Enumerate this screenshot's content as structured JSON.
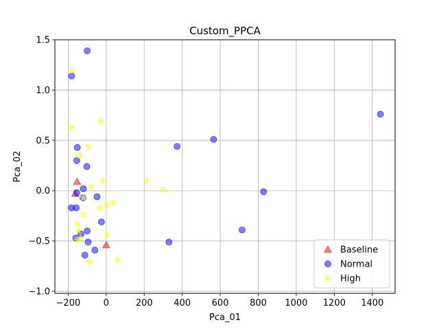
{
  "chart_data": {
    "type": "scatter",
    "title": "Custom_PPCA",
    "xlabel": "Pca_01",
    "ylabel": "Pca_02",
    "xlim": [
      -270,
      1520
    ],
    "ylim": [
      -1.02,
      1.5
    ],
    "xticks": [
      -200,
      0,
      200,
      400,
      600,
      800,
      1000,
      1200,
      1400
    ],
    "yticks": [
      -1.0,
      -0.5,
      0.0,
      0.5,
      1.0,
      1.5
    ],
    "xtick_labels": [
      "−200",
      "0",
      "200",
      "400",
      "600",
      "800",
      "1000",
      "1200",
      "1400"
    ],
    "ytick_labels": [
      "−1.0",
      "−0.5",
      "0.0",
      "0.5",
      "1.0",
      "1.5"
    ],
    "grid": true,
    "legend_position": "lower-right",
    "series": [
      {
        "name": "Baseline",
        "marker": "triangle",
        "color": "#ff0000",
        "points": [
          {
            "x": -163,
            "y": -0.03
          },
          {
            "x": -153,
            "y": 0.09
          },
          {
            "x": 0,
            "y": -0.54
          }
        ]
      },
      {
        "name": "Normal",
        "marker": "circle",
        "color": "#0000ff",
        "points": [
          {
            "x": -100,
            "y": 1.39
          },
          {
            "x": -182,
            "y": 1.14
          },
          {
            "x": -152,
            "y": 0.43
          },
          {
            "x": -155,
            "y": 0.3
          },
          {
            "x": -102,
            "y": 0.24
          },
          {
            "x": -120,
            "y": 0.02
          },
          {
            "x": -155,
            "y": -0.02
          },
          {
            "x": -122,
            "y": -0.07
          },
          {
            "x": -48,
            "y": -0.06
          },
          {
            "x": -183,
            "y": -0.17
          },
          {
            "x": -158,
            "y": -0.17
          },
          {
            "x": -25,
            "y": -0.31
          },
          {
            "x": -100,
            "y": -0.4
          },
          {
            "x": -133,
            "y": -0.43
          },
          {
            "x": -160,
            "y": -0.47
          },
          {
            "x": -95,
            "y": -0.51
          },
          {
            "x": -60,
            "y": -0.59
          },
          {
            "x": -112,
            "y": -0.64
          },
          {
            "x": 373,
            "y": 0.44
          },
          {
            "x": 565,
            "y": 0.51
          },
          {
            "x": 828,
            "y": -0.01
          },
          {
            "x": 715,
            "y": -0.39
          },
          {
            "x": 330,
            "y": -0.51
          },
          {
            "x": 1443,
            "y": 0.76
          }
        ]
      },
      {
        "name": "High",
        "marker": "star",
        "color": "#ffff00",
        "points": [
          {
            "x": -178,
            "y": 1.19
          },
          {
            "x": -180,
            "y": 0.63
          },
          {
            "x": -28,
            "y": 0.69
          },
          {
            "x": -95,
            "y": 0.44
          },
          {
            "x": -140,
            "y": 0.35
          },
          {
            "x": -80,
            "y": 0.04
          },
          {
            "x": -17,
            "y": 0.1
          },
          {
            "x": 213,
            "y": 0.1
          },
          {
            "x": 300,
            "y": 0.01
          },
          {
            "x": -120,
            "y": -0.07
          },
          {
            "x": -33,
            "y": -0.17
          },
          {
            "x": 3,
            "y": -0.14
          },
          {
            "x": 37,
            "y": -0.12
          },
          {
            "x": -118,
            "y": -0.24
          },
          {
            "x": -150,
            "y": -0.33
          },
          {
            "x": -145,
            "y": -0.4
          },
          {
            "x": 5,
            "y": -0.44
          },
          {
            "x": -152,
            "y": -0.49
          },
          {
            "x": -135,
            "y": -0.47
          },
          {
            "x": 60,
            "y": -0.69
          },
          {
            "x": -85,
            "y": -0.71
          }
        ]
      }
    ]
  }
}
